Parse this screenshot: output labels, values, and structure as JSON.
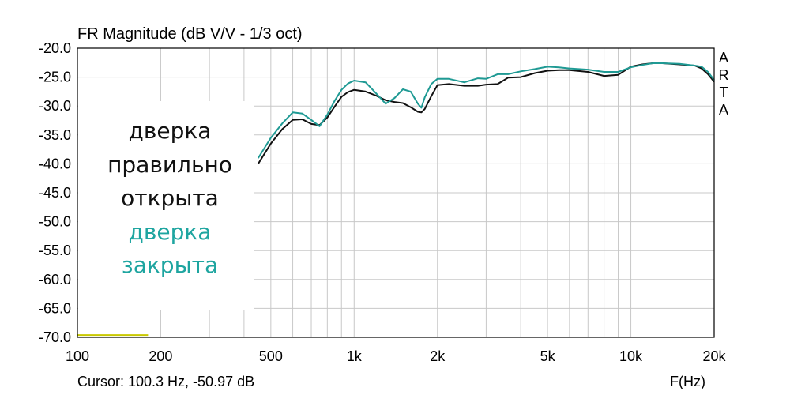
{
  "chart_data": {
    "type": "line",
    "title": "FR Magnitude (dB V/V - 1/3 oct)",
    "xlabel": "F(Hz)",
    "ylabel": "",
    "xscale": "log",
    "xlim": [
      100,
      20000
    ],
    "ylim": [
      -70,
      -20
    ],
    "grid": true,
    "x_ticks": [
      {
        "value": 100,
        "label": "100"
      },
      {
        "value": 200,
        "label": "200"
      },
      {
        "value": 500,
        "label": "500"
      },
      {
        "value": 1000,
        "label": "1k"
      },
      {
        "value": 2000,
        "label": "2k"
      },
      {
        "value": 5000,
        "label": "5k"
      },
      {
        "value": 10000,
        "label": "10k"
      },
      {
        "value": 20000,
        "label": "20k"
      }
    ],
    "y_ticks": [
      {
        "value": -20,
        "label": "-20.0"
      },
      {
        "value": -25,
        "label": "-25.0"
      },
      {
        "value": -30,
        "label": "-30.0"
      },
      {
        "value": -35,
        "label": "-35.0"
      },
      {
        "value": -40,
        "label": "-40.0"
      },
      {
        "value": -45,
        "label": "-45.0"
      },
      {
        "value": -50,
        "label": "-50.0"
      },
      {
        "value": -55,
        "label": "-55.0"
      },
      {
        "value": -60,
        "label": "-60.0"
      },
      {
        "value": -65,
        "label": "-65.0"
      },
      {
        "value": -70,
        "label": "-70.0"
      }
    ],
    "series": [
      {
        "color": "#111111",
        "x": [
          450,
          500,
          550,
          600,
          650,
          700,
          750,
          800,
          850,
          900,
          950,
          1000,
          1100,
          1200,
          1300,
          1400,
          1500,
          1600,
          1700,
          1750,
          1800,
          1900,
          2000,
          2200,
          2500,
          2800,
          3000,
          3300,
          3600,
          4000,
          4500,
          5000,
          5500,
          6000,
          7000,
          8000,
          9000,
          10000,
          11000,
          12000,
          13000,
          15000,
          17000,
          18000,
          19000,
          20000
        ],
        "y": [
          -40,
          -36.5,
          -34,
          -32.4,
          -32.3,
          -33.1,
          -33.3,
          -32,
          -30.1,
          -28.4,
          -27.6,
          -27.2,
          -27.5,
          -28.2,
          -29,
          -29.3,
          -29.5,
          -30.2,
          -31,
          -31.1,
          -30.5,
          -28.3,
          -26.4,
          -26.2,
          -26.5,
          -26.5,
          -26.3,
          -26.2,
          -25.1,
          -25,
          -24.3,
          -23.9,
          -23.8,
          -23.8,
          -24.1,
          -24.8,
          -24.6,
          -23.2,
          -22.8,
          -22.6,
          -22.6,
          -22.8,
          -23,
          -23.5,
          -24.5,
          -25.8
        ]
      },
      {
        "color": "#1f9a94",
        "x": [
          450,
          500,
          550,
          600,
          650,
          700,
          750,
          800,
          850,
          900,
          950,
          1000,
          1100,
          1200,
          1300,
          1400,
          1500,
          1600,
          1700,
          1750,
          1800,
          1900,
          2000,
          2200,
          2500,
          2800,
          3000,
          3300,
          3600,
          4000,
          4500,
          5000,
          5500,
          6000,
          7000,
          8000,
          9000,
          10000,
          11000,
          12000,
          13000,
          15000,
          17000,
          18000,
          19000,
          20000
        ],
        "y": [
          -39,
          -35.5,
          -33,
          -31.1,
          -31.3,
          -32.4,
          -33.5,
          -31.5,
          -29.1,
          -27.2,
          -26.1,
          -25.6,
          -25.9,
          -27.8,
          -29.6,
          -28.6,
          -27.1,
          -27.5,
          -29.6,
          -30.3,
          -28.5,
          -26.2,
          -25.3,
          -25.3,
          -25.9,
          -25.2,
          -25.3,
          -24.5,
          -24.5,
          -24,
          -23.6,
          -23.2,
          -23.3,
          -23.5,
          -23.7,
          -24.1,
          -24.1,
          -23.3,
          -22.9,
          -22.6,
          -22.6,
          -22.7,
          -23,
          -23.2,
          -24.1,
          -25.5
        ]
      },
      {
        "color": "#c8c800",
        "x": [
          100,
          180
        ],
        "y": [
          -69.6,
          -69.6
        ]
      }
    ]
  },
  "vendor_label": [
    "A",
    "R",
    "T",
    "A"
  ],
  "cursor_readout": "Cursor: 100.3 Hz, -50.97 dB",
  "annotation_lines": [
    {
      "text": "дверка",
      "color": "#111111"
    },
    {
      "text": "правильно",
      "color": "#111111"
    },
    {
      "text": "открыта",
      "color": "#111111"
    },
    {
      "text": "дверка",
      "color": "#1ea5a0"
    },
    {
      "text": "закрыта",
      "color": "#1ea5a0"
    }
  ],
  "colors": {
    "grid": "#c8c8c8",
    "frame": "#000000",
    "background": "#ffffff"
  }
}
